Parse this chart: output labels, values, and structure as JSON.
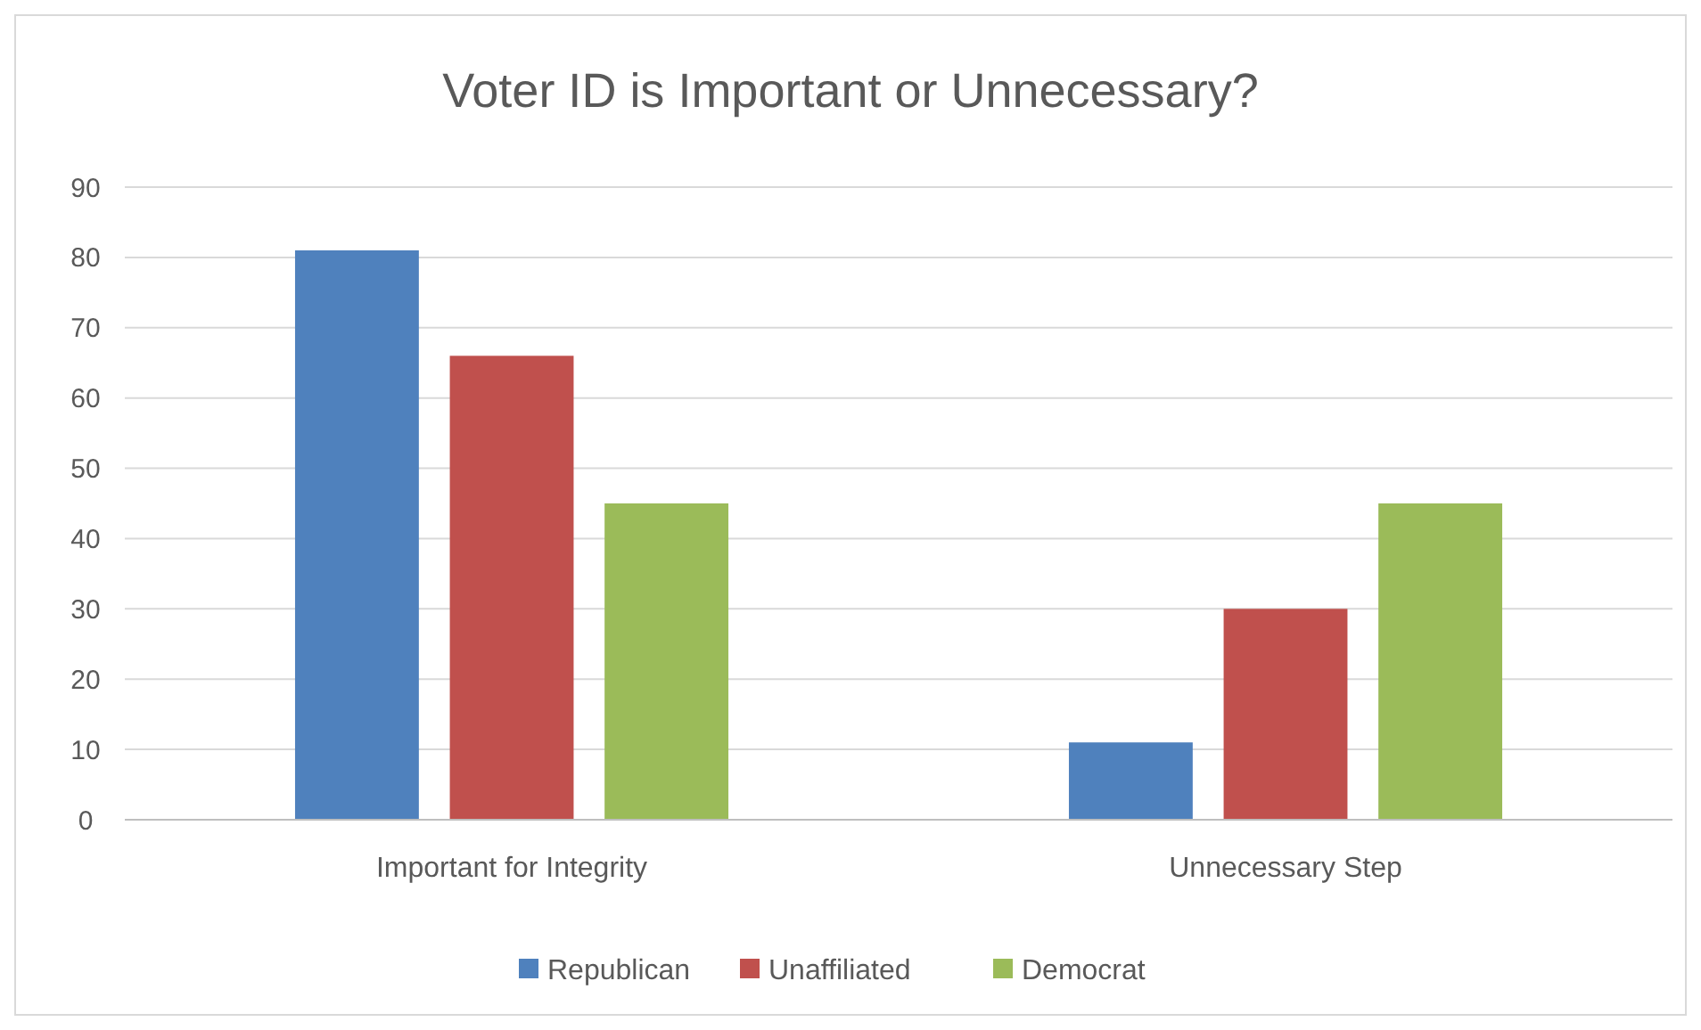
{
  "chart_data": {
    "type": "bar",
    "title": "Voter ID is Important or Unnecessary?",
    "categories": [
      "Important for Integrity",
      "Unnecessary Step"
    ],
    "series": [
      {
        "name": "Republican",
        "color": "#4f81bd",
        "values": [
          81,
          11
        ]
      },
      {
        "name": "Unaffiliated",
        "color": "#c0504d",
        "values": [
          66,
          30
        ]
      },
      {
        "name": "Democrat",
        "color": "#9bbb59",
        "values": [
          45,
          45
        ]
      }
    ],
    "ylim": [
      0,
      90
    ],
    "yticks": [
      0,
      10,
      20,
      30,
      40,
      50,
      60,
      70,
      80,
      90
    ],
    "grid": "y",
    "legend": "bottom"
  }
}
